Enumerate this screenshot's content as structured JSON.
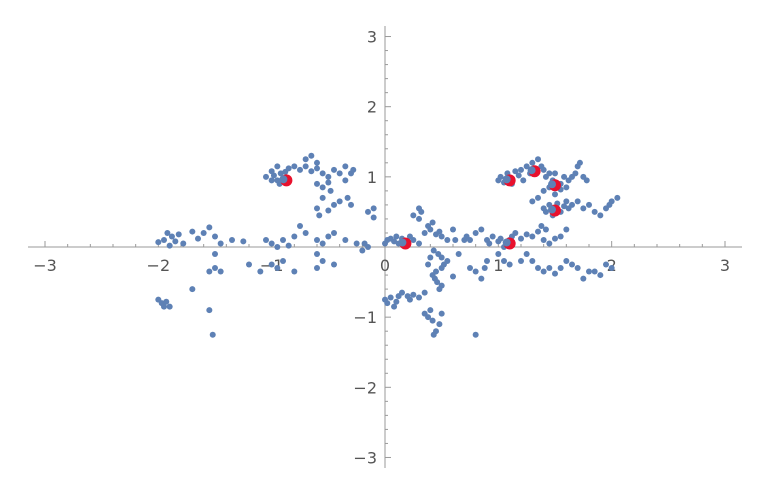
{
  "chart_data": {
    "type": "scatter",
    "title": "",
    "xlabel": "",
    "ylabel": "",
    "xlim": [
      -3.15,
      3.15
    ],
    "ylim": [
      -3.15,
      3.15
    ],
    "grid": false,
    "legend": "none",
    "x_ticks": [
      {
        "value": -3,
        "label": "−3"
      },
      {
        "value": -2,
        "label": "−2"
      },
      {
        "value": -1,
        "label": "−1"
      },
      {
        "value": 0,
        "label": "0"
      },
      {
        "value": 1,
        "label": "1"
      },
      {
        "value": 2,
        "label": "2"
      },
      {
        "value": 3,
        "label": "3"
      }
    ],
    "y_ticks": [
      {
        "value": -3,
        "label": "−3"
      },
      {
        "value": -2,
        "label": "−2"
      },
      {
        "value": -1,
        "label": "−1"
      },
      {
        "value": 1,
        "label": "1"
      },
      {
        "value": 2,
        "label": "2"
      },
      {
        "value": 3,
        "label": "3"
      }
    ],
    "series": [
      {
        "color": "#5E81B5",
        "marker": "dot",
        "points": [
          [
            -2.0,
            0.07
          ],
          [
            -1.95,
            0.1
          ],
          [
            -1.9,
            0.02
          ],
          [
            -1.88,
            0.15
          ],
          [
            -1.85,
            0.08
          ],
          [
            -1.82,
            0.18
          ],
          [
            -1.78,
            0.05
          ],
          [
            -1.92,
            0.2
          ],
          [
            -1.65,
            0.12
          ],
          [
            -1.6,
            0.2
          ],
          [
            -1.55,
            0.28
          ],
          [
            -1.5,
            0.15
          ],
          [
            -1.45,
            0.05
          ],
          [
            -1.35,
            0.1
          ],
          [
            -1.25,
            0.08
          ],
          [
            -1.7,
            0.22
          ],
          [
            -2.0,
            -0.75
          ],
          [
            -1.97,
            -0.8
          ],
          [
            -1.93,
            -0.78
          ],
          [
            -1.9,
            -0.85
          ],
          [
            -1.95,
            -0.85
          ],
          [
            -1.7,
            -0.6
          ],
          [
            -1.55,
            -0.9
          ],
          [
            -1.52,
            -1.25
          ],
          [
            -1.55,
            -0.35
          ],
          [
            -1.5,
            -0.3
          ],
          [
            -1.45,
            -0.35
          ],
          [
            -1.5,
            -0.1
          ],
          [
            -1.2,
            -0.25
          ],
          [
            -1.1,
            -0.35
          ],
          [
            -1.05,
            0.1
          ],
          [
            -1.0,
            0.05
          ],
          [
            -0.95,
            0.0
          ],
          [
            -0.9,
            0.1
          ],
          [
            -0.85,
            0.02
          ],
          [
            -0.8,
            0.15
          ],
          [
            -0.75,
            0.3
          ],
          [
            -0.7,
            0.2
          ],
          [
            -0.6,
            0.1
          ],
          [
            -0.55,
            0.05
          ],
          [
            -0.5,
            0.15
          ],
          [
            -0.45,
            0.2
          ],
          [
            -0.35,
            0.1
          ],
          [
            -0.25,
            0.05
          ],
          [
            -0.15,
            0.0
          ],
          [
            -1.0,
            -0.25
          ],
          [
            -0.95,
            -0.3
          ],
          [
            -0.9,
            -0.2
          ],
          [
            -0.8,
            -0.35
          ],
          [
            -0.6,
            -0.3
          ],
          [
            -0.55,
            -0.2
          ],
          [
            -0.45,
            -0.25
          ],
          [
            -0.6,
            -0.1
          ],
          [
            -1.0,
            0.95
          ],
          [
            -1.05,
            1.0
          ],
          [
            -0.98,
            1.02
          ],
          [
            -0.95,
            0.95
          ],
          [
            -0.92,
            1.05
          ],
          [
            -0.9,
            0.98
          ],
          [
            -0.93,
            0.9
          ],
          [
            -0.88,
            1.07
          ],
          [
            -1.0,
            1.08
          ],
          [
            -0.95,
            1.15
          ],
          [
            -0.85,
            1.12
          ],
          [
            -0.8,
            1.15
          ],
          [
            -0.75,
            1.1
          ],
          [
            -0.7,
            1.15
          ],
          [
            -0.65,
            1.08
          ],
          [
            -0.6,
            1.12
          ],
          [
            -0.7,
            1.25
          ],
          [
            -0.65,
            1.3
          ],
          [
            -0.6,
            1.2
          ],
          [
            -0.55,
            1.05
          ],
          [
            -0.5,
            1.0
          ],
          [
            -0.45,
            1.1
          ],
          [
            -0.4,
            1.05
          ],
          [
            -0.35,
            1.15
          ],
          [
            -0.6,
            0.9
          ],
          [
            -0.55,
            0.85
          ],
          [
            -0.5,
            0.92
          ],
          [
            -0.48,
            0.8
          ],
          [
            -0.55,
            0.7
          ],
          [
            -0.6,
            0.55
          ],
          [
            -0.58,
            0.45
          ],
          [
            -0.5,
            0.52
          ],
          [
            -0.45,
            0.6
          ],
          [
            -0.4,
            0.65
          ],
          [
            -0.35,
            0.95
          ],
          [
            -0.3,
            1.05
          ],
          [
            -0.28,
            1.1
          ],
          [
            -0.33,
            0.7
          ],
          [
            -0.3,
            0.6
          ],
          [
            -0.15,
            0.5
          ],
          [
            -0.1,
            0.42
          ],
          [
            -0.1,
            0.55
          ],
          [
            0.0,
            0.05
          ],
          [
            0.02,
            0.1
          ],
          [
            0.05,
            0.12
          ],
          [
            0.08,
            0.08
          ],
          [
            0.1,
            0.15
          ],
          [
            0.12,
            0.05
          ],
          [
            0.15,
            0.12
          ],
          [
            0.2,
            0.08
          ],
          [
            0.22,
            0.15
          ],
          [
            0.25,
            0.1
          ],
          [
            0.3,
            0.05
          ],
          [
            0.35,
            0.2
          ],
          [
            0.38,
            0.3
          ],
          [
            0.4,
            0.25
          ],
          [
            0.42,
            0.35
          ],
          [
            0.45,
            0.18
          ],
          [
            0.3,
            0.55
          ],
          [
            0.32,
            0.5
          ],
          [
            0.48,
            0.22
          ],
          [
            0.5,
            0.15
          ],
          [
            0.55,
            0.1
          ],
          [
            0.6,
            0.25
          ],
          [
            0.62,
            0.1
          ],
          [
            0.0,
            -0.75
          ],
          [
            0.02,
            -0.8
          ],
          [
            0.05,
            -0.72
          ],
          [
            0.08,
            -0.85
          ],
          [
            0.1,
            -0.78
          ],
          [
            0.12,
            -0.7
          ],
          [
            0.15,
            -0.65
          ],
          [
            0.2,
            -0.7
          ],
          [
            0.22,
            -0.75
          ],
          [
            0.25,
            -0.68
          ],
          [
            0.3,
            -0.72
          ],
          [
            0.35,
            -0.65
          ],
          [
            0.35,
            -0.95
          ],
          [
            0.38,
            -1.0
          ],
          [
            0.4,
            -0.9
          ],
          [
            0.42,
            -1.05
          ],
          [
            0.45,
            -1.2
          ],
          [
            0.43,
            -1.25
          ],
          [
            0.48,
            -1.1
          ],
          [
            0.5,
            -0.95
          ],
          [
            0.5,
            -0.55
          ],
          [
            0.48,
            -0.6
          ],
          [
            0.46,
            -0.5
          ],
          [
            0.44,
            -0.45
          ],
          [
            0.42,
            -0.4
          ],
          [
            0.45,
            -0.35
          ],
          [
            0.5,
            -0.3
          ],
          [
            0.52,
            -0.25
          ],
          [
            0.55,
            -0.2
          ],
          [
            0.5,
            -0.15
          ],
          [
            0.47,
            -0.1
          ],
          [
            0.43,
            -0.05
          ],
          [
            0.4,
            -0.15
          ],
          [
            0.38,
            -0.25
          ],
          [
            0.6,
            -0.42
          ],
          [
            0.75,
            -0.3
          ],
          [
            0.8,
            -0.35
          ],
          [
            0.85,
            -0.45
          ],
          [
            0.88,
            -0.3
          ],
          [
            0.9,
            -0.2
          ],
          [
            0.8,
            -1.25
          ],
          [
            0.65,
            -0.1
          ],
          [
            0.7,
            0.1
          ],
          [
            0.72,
            0.15
          ],
          [
            0.75,
            0.1
          ],
          [
            0.8,
            0.2
          ],
          [
            0.85,
            0.25
          ],
          [
            0.9,
            0.1
          ],
          [
            0.92,
            0.05
          ],
          [
            0.95,
            0.15
          ],
          [
            1.0,
            0.08
          ],
          [
            1.02,
            0.12
          ],
          [
            1.05,
            0.0
          ],
          [
            1.08,
            0.02
          ],
          [
            1.1,
            0.1
          ],
          [
            1.12,
            0.15
          ],
          [
            1.15,
            0.2
          ],
          [
            1.2,
            0.12
          ],
          [
            1.25,
            0.18
          ],
          [
            1.3,
            0.15
          ],
          [
            1.35,
            0.22
          ],
          [
            1.4,
            0.1
          ],
          [
            1.45,
            0.05
          ],
          [
            1.5,
            0.12
          ],
          [
            1.55,
            0.15
          ],
          [
            1.6,
            0.25
          ],
          [
            1.0,
            -0.1
          ],
          [
            1.05,
            -0.2
          ],
          [
            1.1,
            -0.25
          ],
          [
            1.2,
            -0.2
          ],
          [
            1.25,
            -0.1
          ],
          [
            1.3,
            -0.2
          ],
          [
            1.35,
            -0.3
          ],
          [
            1.4,
            -0.35
          ],
          [
            1.45,
            -0.3
          ],
          [
            1.5,
            -0.38
          ],
          [
            1.55,
            -0.3
          ],
          [
            1.6,
            -0.2
          ],
          [
            1.65,
            -0.25
          ],
          [
            1.7,
            -0.3
          ],
          [
            1.75,
            -0.45
          ],
          [
            1.8,
            -0.35
          ],
          [
            1.85,
            -0.35
          ],
          [
            1.9,
            -0.4
          ],
          [
            1.95,
            -0.25
          ],
          [
            2.0,
            -0.3
          ],
          [
            1.0,
            0.95
          ],
          [
            1.02,
            1.0
          ],
          [
            1.05,
            0.92
          ],
          [
            1.08,
            1.05
          ],
          [
            1.1,
            0.98
          ],
          [
            1.12,
            0.9
          ],
          [
            1.15,
            1.08
          ],
          [
            1.18,
            1.02
          ],
          [
            1.2,
            1.1
          ],
          [
            1.22,
            0.95
          ],
          [
            1.25,
            1.15
          ],
          [
            1.28,
            1.05
          ],
          [
            1.3,
            1.2
          ],
          [
            1.32,
            1.1
          ],
          [
            1.35,
            1.25
          ],
          [
            1.38,
            1.15
          ],
          [
            1.4,
            1.1
          ],
          [
            1.42,
            1.0
          ],
          [
            1.45,
            1.05
          ],
          [
            1.48,
            0.95
          ],
          [
            1.5,
            1.05
          ],
          [
            1.55,
            0.9
          ],
          [
            1.58,
            1.0
          ],
          [
            1.6,
            0.85
          ],
          [
            1.62,
            0.95
          ],
          [
            1.65,
            1.0
          ],
          [
            1.68,
            1.05
          ],
          [
            1.7,
            1.15
          ],
          [
            1.72,
            1.2
          ],
          [
            1.75,
            1.0
          ],
          [
            1.78,
            0.95
          ],
          [
            1.4,
            0.55
          ],
          [
            1.42,
            0.5
          ],
          [
            1.45,
            0.6
          ],
          [
            1.48,
            0.45
          ],
          [
            1.5,
            0.55
          ],
          [
            1.52,
            0.62
          ],
          [
            1.55,
            0.5
          ],
          [
            1.58,
            0.58
          ],
          [
            1.6,
            0.65
          ],
          [
            1.62,
            0.55
          ],
          [
            1.65,
            0.6
          ],
          [
            1.7,
            0.65
          ],
          [
            1.75,
            0.55
          ],
          [
            1.8,
            0.6
          ],
          [
            1.85,
            0.5
          ],
          [
            1.9,
            0.45
          ],
          [
            1.95,
            0.55
          ],
          [
            2.0,
            0.65
          ],
          [
            2.05,
            0.7
          ],
          [
            1.98,
            0.6
          ],
          [
            1.4,
            0.8
          ],
          [
            1.45,
            0.85
          ],
          [
            1.5,
            0.75
          ],
          [
            1.55,
            0.82
          ],
          [
            1.35,
            0.7
          ],
          [
            1.3,
            0.65
          ],
          [
            1.38,
            0.3
          ],
          [
            1.42,
            0.25
          ],
          [
            0.3,
            0.4
          ],
          [
            0.25,
            0.45
          ],
          [
            -0.2,
            -0.05
          ],
          [
            -0.18,
            0.05
          ]
        ]
      },
      {
        "color": "#E8112D",
        "marker": "ring",
        "points": [
          [
            -0.87,
            0.95
          ],
          [
            0.18,
            0.05
          ],
          [
            1.1,
            0.05
          ],
          [
            1.1,
            0.95
          ],
          [
            1.32,
            1.08
          ],
          [
            1.5,
            0.88
          ],
          [
            1.5,
            0.52
          ]
        ]
      }
    ]
  }
}
